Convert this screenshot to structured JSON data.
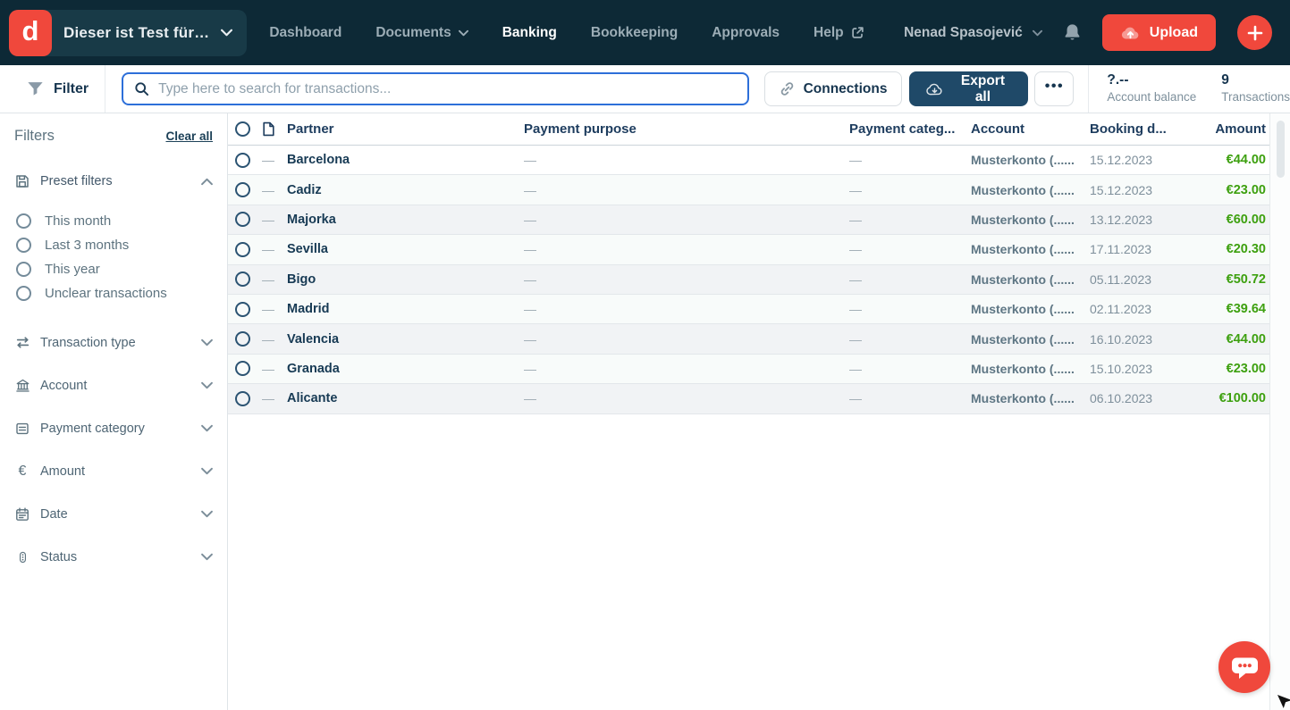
{
  "brand": {
    "logo_letter": "d"
  },
  "colors": {
    "accent_red": "#F0483C",
    "navbar_navy": "#0D2936",
    "primary_button_blue": "#1F4968",
    "search_focus_blue": "#2D6FD9",
    "amount_green": "#3DA00F",
    "text_navy": "#16354F"
  },
  "icons": {
    "chevron-down-icon": "v",
    "chevron-up-icon": "^",
    "external-link-icon": "↗",
    "bell-icon": "bell",
    "cloud-upload-icon": "cloud+up-arrow",
    "plus-icon": "+",
    "funnel-icon": "filter funnel",
    "search-icon": "magnifier",
    "link-icon": "chain link",
    "cloud-export-icon": "cloud+down-arrow",
    "more-icon": "•••",
    "save-icon": "floppy disk",
    "transfer-icon": "two opposing arrows",
    "bank-icon": "bank building",
    "category-icon": "card with lines",
    "euro-icon": "€",
    "calendar-icon": "calendar",
    "status-icon": "traffic light",
    "document-icon": "file page",
    "chat-icon": "speech bubble with three dots"
  },
  "navbar": {
    "company_selector": "Dieser ist Test für…",
    "items": [
      {
        "label": "Dashboard"
      },
      {
        "label": "Documents",
        "dropdown": true
      },
      {
        "label": "Banking",
        "active": true
      },
      {
        "label": "Bookkeeping"
      },
      {
        "label": "Approvals"
      },
      {
        "label": "Help",
        "external": true
      }
    ],
    "user_name": "Nenad Spasojević",
    "upload_label": "Upload"
  },
  "toolbar": {
    "filter_label": "Filter",
    "search_placeholder": "Type here to search for transactions...",
    "search_value": "",
    "connections_label": "Connections",
    "export_label": "Export all",
    "more_label": "•••",
    "stats": [
      {
        "value": "?.--",
        "label": "Account balance"
      },
      {
        "value": "9",
        "label": "Transactions"
      }
    ]
  },
  "sidebar": {
    "title": "Filters",
    "clear_all": "Clear all",
    "preset": {
      "label": "Preset filters",
      "options": [
        {
          "label": "This month"
        },
        {
          "label": "Last 3 months"
        },
        {
          "label": "This year"
        },
        {
          "label": "Unclear transactions"
        }
      ]
    },
    "sections": [
      {
        "icon": "transfer",
        "label": "Transaction type"
      },
      {
        "icon": "bank",
        "label": "Account"
      },
      {
        "icon": "category",
        "label": "Payment category"
      },
      {
        "icon": "euro",
        "label": "Amount"
      },
      {
        "icon": "calendar",
        "label": "Date"
      },
      {
        "icon": "status",
        "label": "Status"
      }
    ]
  },
  "table": {
    "columns": {
      "partner": "Partner",
      "purpose": "Payment purpose",
      "category": "Payment categ...",
      "account": "Account",
      "booking_date": "Booking d...",
      "amount": "Amount"
    },
    "rows": [
      {
        "doc": "—",
        "partner": "Barcelona",
        "purpose": "—",
        "category": "—",
        "account": "Musterkonto (......",
        "date": "15.12.2023",
        "amount": "€44.00"
      },
      {
        "doc": "—",
        "partner": "Cadiz",
        "purpose": "—",
        "category": "—",
        "account": "Musterkonto (......",
        "date": "15.12.2023",
        "amount": "€23.00"
      },
      {
        "doc": "—",
        "partner": "Majorka",
        "purpose": "—",
        "category": "—",
        "account": "Musterkonto (......",
        "date": "13.12.2023",
        "amount": "€60.00"
      },
      {
        "doc": "—",
        "partner": "Sevilla",
        "purpose": "—",
        "category": "—",
        "account": "Musterkonto (......",
        "date": "17.11.2023",
        "amount": "€20.30"
      },
      {
        "doc": "—",
        "partner": "Bigo",
        "purpose": "—",
        "category": "—",
        "account": "Musterkonto (......",
        "date": "05.11.2023",
        "amount": "€50.72"
      },
      {
        "doc": "—",
        "partner": "Madrid",
        "purpose": "—",
        "category": "—",
        "account": "Musterkonto (......",
        "date": "02.11.2023",
        "amount": "€39.64"
      },
      {
        "doc": "—",
        "partner": "Valencia",
        "purpose": "—",
        "category": "—",
        "account": "Musterkonto (......",
        "date": "16.10.2023",
        "amount": "€44.00"
      },
      {
        "doc": "—",
        "partner": "Granada",
        "purpose": "—",
        "category": "—",
        "account": "Musterkonto (......",
        "date": "15.10.2023",
        "amount": "€23.00"
      },
      {
        "doc": "—",
        "partner": "Alicante",
        "purpose": "—",
        "category": "—",
        "account": "Musterkonto (......",
        "date": "06.10.2023",
        "amount": "€100.00"
      }
    ]
  }
}
